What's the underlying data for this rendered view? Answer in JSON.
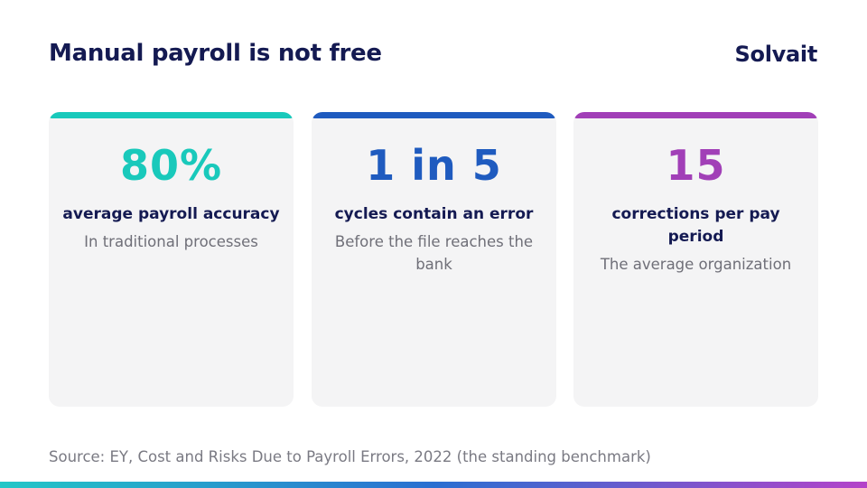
{
  "slide": {
    "title": "Manual payroll is not free",
    "brand": "Solvait",
    "source": "Source: EY, Cost and Risks Due to Payroll Errors, 2022 (the standing benchmark)"
  },
  "cards": [
    {
      "stat": "80%",
      "label": "average payroll accuracy",
      "sub": "In traditional processes",
      "accent": "#19c9bb"
    },
    {
      "stat": "1 in 5",
      "label": "cycles contain an error",
      "sub": "Before the file reaches the bank",
      "accent": "#1f5bbf"
    },
    {
      "stat": "15",
      "label": "corrections per pay period",
      "sub": "The average organization",
      "accent": "#a13fb7"
    }
  ],
  "colors": {
    "title": "#141a52",
    "card_bg": "#f4f4f5",
    "muted_text": "#6f6f78",
    "stripe_start": "#23c7c7",
    "stripe_mid": "#2a6fd1",
    "stripe_end": "#b443c9"
  }
}
